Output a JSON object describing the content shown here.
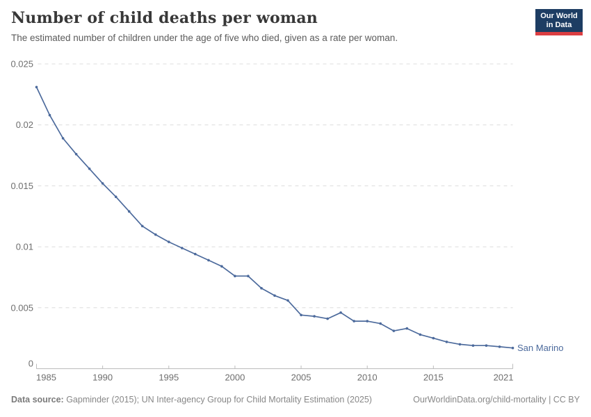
{
  "header": {
    "title": "Number of child deaths per woman",
    "subtitle": "The estimated number of children under the age of five who died, given as a rate per woman."
  },
  "logo": {
    "line1": "Our World",
    "line2": "in Data",
    "bg_color": "#1d3d63",
    "bar_color": "#dc3e42"
  },
  "footer": {
    "source_label": "Data source:",
    "source_text": " Gapminder (2015); UN Inter-agency Group for Child Mortality Estimation (2025)",
    "right_text": "OurWorldinData.org/child-mortality | CC BY"
  },
  "chart_data": {
    "type": "line",
    "title": "Number of child deaths per woman",
    "xlabel": "",
    "ylabel": "",
    "xlim": [
      1985,
      2021
    ],
    "ylim": [
      0,
      0.025
    ],
    "x_ticks": [
      1985,
      1990,
      1995,
      2000,
      2005,
      2010,
      2015,
      2021
    ],
    "x_tick_labels": [
      "1985",
      "1990",
      "1995",
      "2000",
      "2005",
      "2010",
      "2015",
      "2021"
    ],
    "y_ticks": [
      0,
      0.005,
      0.01,
      0.015,
      0.02,
      0.025
    ],
    "y_tick_labels": [
      "0",
      "0.005",
      "0.01",
      "0.015",
      "0.02",
      "0.025"
    ],
    "grid": "horizontal-dashed",
    "legend_position": "end-of-line-label",
    "x": [
      1985,
      1986,
      1987,
      1988,
      1989,
      1990,
      1991,
      1992,
      1993,
      1994,
      1995,
      1996,
      1997,
      1998,
      1999,
      2000,
      2001,
      2002,
      2003,
      2004,
      2005,
      2006,
      2007,
      2008,
      2009,
      2010,
      2011,
      2012,
      2013,
      2014,
      2015,
      2016,
      2017,
      2018,
      2019,
      2020,
      2021
    ],
    "series": [
      {
        "name": "San Marino",
        "color": "#4c6a9c",
        "values": [
          0.0231,
          0.0208,
          0.0189,
          0.0176,
          0.0164,
          0.0152,
          0.0141,
          0.0129,
          0.0117,
          0.011,
          0.0104,
          0.0099,
          0.0094,
          0.0089,
          0.0084,
          0.0076,
          0.0076,
          0.0066,
          0.006,
          0.0056,
          0.0044,
          0.0043,
          0.0041,
          0.0046,
          0.0039,
          0.0039,
          0.0037,
          0.0031,
          0.0033,
          0.0028,
          0.0025,
          0.0022,
          0.002,
          0.0019,
          0.0019,
          0.0018,
          0.0017
        ]
      }
    ],
    "style": {
      "grid_color": "#dcdcdc",
      "axis_color": "#bcbcbc",
      "tick_label_color": "#6e6e6e"
    }
  }
}
